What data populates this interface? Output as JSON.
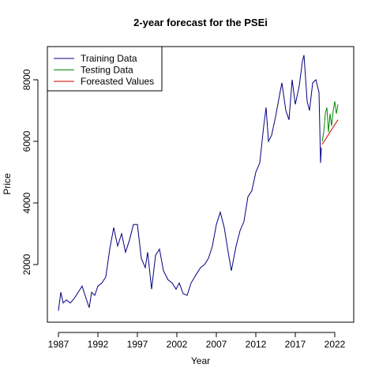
{
  "chart_data": {
    "type": "line",
    "title": "2-year forecast for the PSEi",
    "xlabel": "Year",
    "ylabel": "Price",
    "xlim": [
      1985.6,
      2024.4
    ],
    "ylim": [
      128,
      9077
    ],
    "xticks": [
      1987,
      1992,
      1997,
      2002,
      2007,
      2012,
      2017,
      2022
    ],
    "yticks": [
      2000,
      4000,
      6000,
      8000
    ],
    "legend": "topleft",
    "series": [
      {
        "name": "Training Data",
        "color": "#000080",
        "x": [
          1987.0,
          1987.3,
          1987.6,
          1988.0,
          1988.5,
          1989.0,
          1989.5,
          1990.0,
          1990.5,
          1990.9,
          1991.2,
          1991.6,
          1992.0,
          1992.5,
          1993.0,
          1993.5,
          1994.0,
          1994.5,
          1995.0,
          1995.5,
          1996.0,
          1996.5,
          1997.0,
          1997.5,
          1998.0,
          1998.3,
          1998.8,
          1999.3,
          1999.8,
          2000.3,
          2000.9,
          2001.4,
          2001.9,
          2002.3,
          2002.8,
          2003.3,
          2003.8,
          2004.5,
          2005.0,
          2005.5,
          2006.0,
          2006.5,
          2007.0,
          2007.5,
          2008.0,
          2008.5,
          2008.9,
          2009.5,
          2010.0,
          2010.5,
          2011.0,
          2011.5,
          2012.0,
          2012.5,
          2013.0,
          2013.3,
          2013.6,
          2014.0,
          2014.5,
          2015.0,
          2015.3,
          2015.8,
          2016.2,
          2016.6,
          2017.0,
          2017.5,
          2017.9,
          2018.1,
          2018.5,
          2018.8,
          2019.2,
          2019.6,
          2020.0,
          2020.2,
          2020.3
        ],
        "values": [
          500,
          1100,
          750,
          850,
          750,
          900,
          1100,
          1300,
          900,
          600,
          1100,
          1000,
          1300,
          1400,
          1600,
          2500,
          3200,
          2600,
          3000,
          2400,
          2800,
          3300,
          3300,
          2200,
          1900,
          2400,
          1200,
          2300,
          2500,
          1800,
          1500,
          1400,
          1200,
          1400,
          1050,
          1000,
          1400,
          1700,
          1900,
          2000,
          2200,
          2600,
          3300,
          3700,
          3200,
          2400,
          1800,
          2600,
          3100,
          3400,
          4200,
          4400,
          5000,
          5300,
          6500,
          7100,
          6000,
          6200,
          6800,
          7500,
          7900,
          7000,
          6700,
          8000,
          7200,
          7800,
          8600,
          8800,
          7300,
          7000,
          7900,
          8000,
          7600,
          5300,
          5800
        ]
      },
      {
        "name": "Testing Data",
        "color": "#008b00",
        "x": [
          2020.4,
          2020.6,
          2020.8,
          2021.0,
          2021.2,
          2021.4,
          2021.6,
          2021.8,
          2022.0,
          2022.2,
          2022.4
        ],
        "values": [
          6000,
          6300,
          6900,
          7100,
          6300,
          6900,
          6500,
          7000,
          7300,
          6900,
          7200
        ]
      },
      {
        "name": "Foreasted Values",
        "color": "#cc0000",
        "x": [
          2020.4,
          2020.9,
          2021.4,
          2021.9,
          2022.4
        ],
        "values": [
          5900,
          6100,
          6300,
          6500,
          6700
        ]
      }
    ]
  }
}
